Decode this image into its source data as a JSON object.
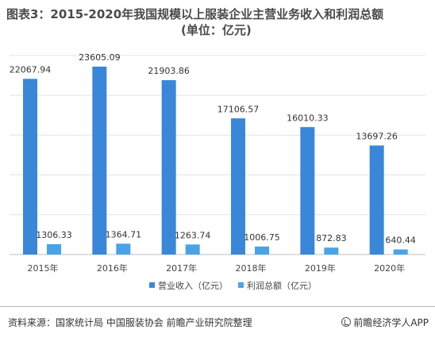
{
  "title": {
    "line1": "图表3：2015-2020年我国规模以上服装企业主营业务收入和利润总额",
    "line2": "(单位：亿元)"
  },
  "chart_data": {
    "type": "bar",
    "categories": [
      "2015年",
      "2016年",
      "2017年",
      "2018年",
      "2019年",
      "2020年"
    ],
    "series": [
      {
        "name": "营业收入（亿元）",
        "values": [
          22067.94,
          23605.09,
          21903.86,
          17106.57,
          16010.33,
          13697.26
        ],
        "labels": [
          "22067.94",
          "23605.09",
          "21903.86",
          "17106.57",
          "16010.33",
          "13697.26"
        ],
        "color": "#3a87d9"
      },
      {
        "name": "利润总额（亿元）",
        "values": [
          1306.33,
          1364.71,
          1263.74,
          1006.75,
          872.83,
          640.44
        ],
        "labels": [
          "1306.33",
          "1364.71",
          "1263.74",
          "1006.75",
          "872.83",
          "640.44"
        ],
        "color": "#49a3e6"
      }
    ],
    "ylim": [
      0,
      25000
    ],
    "gridlines": [
      0,
      5000,
      10000,
      15000,
      20000,
      25000
    ],
    "grid": true,
    "legend": "bottom-center"
  },
  "source": {
    "text": "资料来源：国家统计局 中国服装协会 前瞻产业研究院整理",
    "logo_text": "前瞻经济学人APP",
    "logo_icon": "qianzhan-logo-icon"
  }
}
